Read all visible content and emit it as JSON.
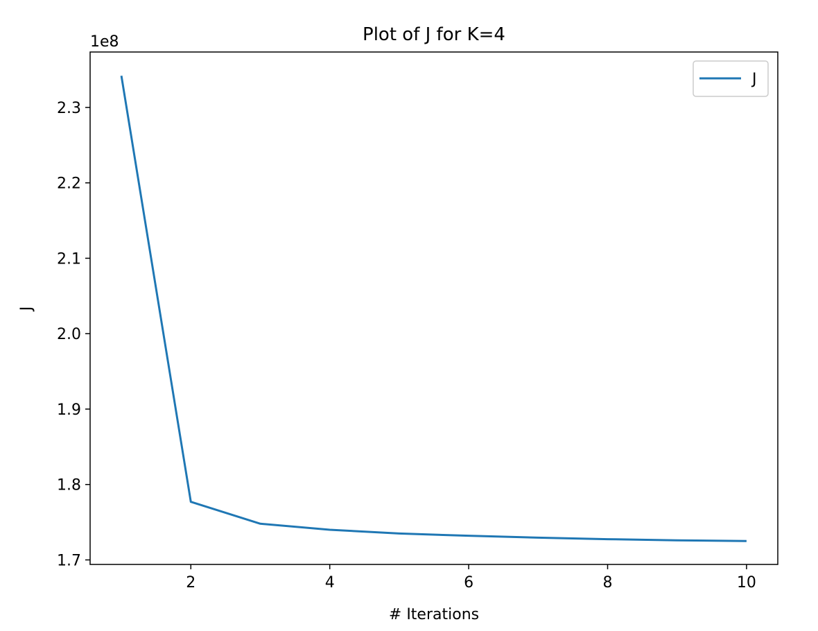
{
  "chart_data": {
    "type": "line",
    "title": "Plot of J for K=4",
    "xlabel": "# Iterations",
    "ylabel": "J",
    "y_offset_label": "1e8",
    "xlim": [
      0.55,
      10.45
    ],
    "ylim": [
      1.694,
      2.3735
    ],
    "x_ticks": [
      2,
      4,
      6,
      8,
      10
    ],
    "x_tick_labels": [
      "2",
      "4",
      "6",
      "8",
      "10"
    ],
    "y_ticks": [
      1.7,
      1.8,
      1.9,
      2.0,
      2.1,
      2.2,
      2.3
    ],
    "y_tick_labels": [
      "1.7",
      "1.8",
      "1.9",
      "2.0",
      "2.1",
      "2.2",
      "2.3"
    ],
    "grid": false,
    "legend": {
      "position": "upper right",
      "entries": [
        "J"
      ]
    },
    "series": [
      {
        "name": "J",
        "color": "#1f77b4",
        "x": [
          1,
          2,
          3,
          4,
          5,
          6,
          7,
          8,
          9,
          10
        ],
        "y": [
          2.342,
          1.777,
          1.748,
          1.74,
          1.735,
          1.732,
          1.7295,
          1.7275,
          1.726,
          1.725
        ]
      }
    ]
  }
}
